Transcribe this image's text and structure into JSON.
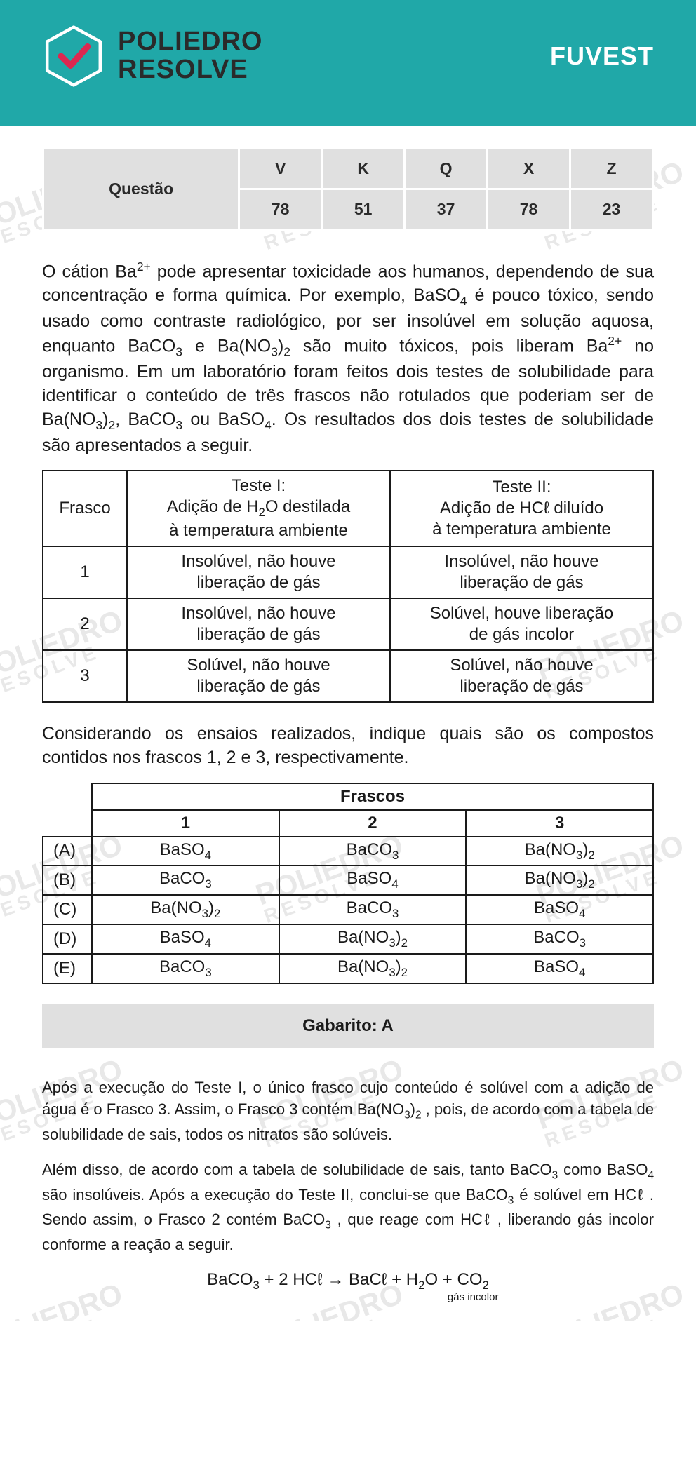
{
  "colors": {
    "header_bg": "#20a8a8",
    "header_text": "#2a2a2a",
    "fuvest_text": "#ffffff",
    "table_bg": "#e0e0e0",
    "table_border": "#ffffff",
    "body_text": "#1a1a1a",
    "watermark": "#e8e8e8",
    "check": "#dc2850"
  },
  "brand": {
    "line1": "POLIEDRO",
    "line2": "RESOLVE",
    "exam": "FUVEST"
  },
  "question_header": {
    "label": "Questão",
    "cols": [
      "V",
      "K",
      "Q",
      "X",
      "Z"
    ],
    "values": [
      "78",
      "51",
      "37",
      "78",
      "23"
    ]
  },
  "paragraph1": "O cátion Ba<sup>2+</sup> pode apresentar toxicidade aos humanos, dependendo de sua concentração e forma química. Por exemplo, BaSO<sub>4</sub> é pouco tóxico, sendo usado como contraste radiológico, por ser insolúvel em solução aquosa, enquanto BaCO<sub>3</sub> e Ba(NO<sub>3</sub>)<sub>2</sub> são muito tóxicos, pois liberam Ba<sup>2+</sup> no organismo. Em um laboratório foram feitos dois testes de solubilidade para identificar o conteúdo de três frascos não rotulados que poderiam ser de Ba(NO<sub>3</sub>)<sub>2</sub>, BaCO<sub>3</sub> ou BaSO<sub>4</sub>. Os resultados dos dois testes de solubilidade são apresentados a seguir.",
  "test_table": {
    "headers": {
      "frasco": "Frasco",
      "t1": "Teste I:<br>Adição de H<sub>2</sub>O destilada<br>à temperatura ambiente",
      "t2": "Teste II:<br>Adição de HCℓ diluído<br>à temperatura ambiente"
    },
    "rows": [
      {
        "n": "1",
        "t1": "Insolúvel, não houve<br>liberação de gás",
        "t2": "Insolúvel, não houve<br>liberação de gás"
      },
      {
        "n": "2",
        "t1": "Insolúvel, não houve<br>liberação de gás",
        "t2": "Solúvel, houve liberação<br>de gás incolor"
      },
      {
        "n": "3",
        "t1": "Solúvel, não houve<br>liberação de gás",
        "t2": "Solúvel, não houve<br>liberação de gás"
      }
    ]
  },
  "paragraph2": "Considerando os ensaios realizados, indique quais são os compostos contidos nos frascos 1, 2 e 3, respectivamente.",
  "answer_table": {
    "super_header": "Frascos",
    "cols": [
      "1",
      "2",
      "3"
    ],
    "rows": [
      {
        "opt": "(A)",
        "v": [
          "BaSO<sub>4</sub>",
          "BaCO<sub>3</sub>",
          "Ba(NO<sub>3</sub>)<sub>2</sub>"
        ]
      },
      {
        "opt": "(B)",
        "v": [
          "BaCO<sub>3</sub>",
          "BaSO<sub>4</sub>",
          "Ba(NO<sub>3</sub>)<sub>2</sub>"
        ]
      },
      {
        "opt": "(C)",
        "v": [
          "Ba(NO<sub>3</sub>)<sub>2</sub>",
          "BaCO<sub>3</sub>",
          "BaSO<sub>4</sub>"
        ]
      },
      {
        "opt": "(D)",
        "v": [
          "BaSO<sub>4</sub>",
          "Ba(NO<sub>3</sub>)<sub>2</sub>",
          "BaCO<sub>3</sub>"
        ]
      },
      {
        "opt": "(E)",
        "v": [
          "BaCO<sub>3</sub>",
          "Ba(NO<sub>3</sub>)<sub>2</sub>",
          "BaSO<sub>4</sub>"
        ]
      }
    ]
  },
  "gabarito": "Gabarito: A",
  "explanation": [
    "Após a execução do Teste I, o único frasco cujo conteúdo é solúvel com a adição de água é o Frasco 3. Assim, o Frasco 3 contém Ba(NO<sub>3</sub>)<sub>2</sub> , pois, de acordo com a tabela de solubilidade de sais, todos os nitratos são solúveis.",
    "Além disso, de acordo com a tabela de solubilidade de sais, tanto BaCO<sub>3</sub> como BaSO<sub>4</sub> são insolúveis. Após a execução do Teste II, conclui-se que BaCO<sub>3</sub> é solúvel em HCℓ . Sendo assim, o Frasco 2 contém BaCO<sub>3</sub> , que reage com HCℓ , liberando gás incolor conforme a reação a seguir."
  ],
  "equation": {
    "lhs": "BaCO<sub>3</sub> + 2 HCℓ → BaCℓ + H<sub>2</sub>O + ",
    "gas": "CO<sub>2</sub>",
    "gas_label": "gás incolor"
  },
  "watermark_text": "POLIEDRO",
  "watermark_sub": "RESOLVE"
}
